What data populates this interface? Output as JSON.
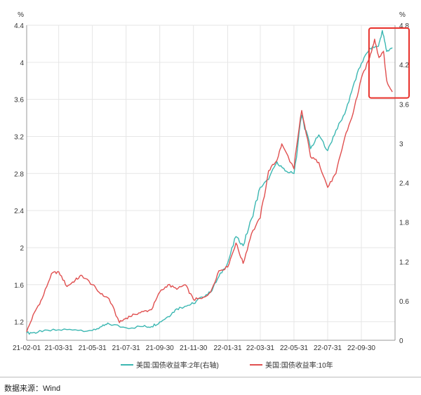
{
  "chart_data": {
    "type": "line",
    "title": "",
    "left_axis": {
      "unit": "%",
      "ylim": [
        1.0,
        4.4
      ],
      "ticks": [
        "1.2",
        "1.6",
        "2",
        "2.4",
        "2.8",
        "3.2",
        "3.6",
        "4",
        "4.4"
      ]
    },
    "right_axis": {
      "unit": "%",
      "ylim": [
        0,
        4.8
      ],
      "ticks": [
        "0",
        "0.6",
        "1.2",
        "1.8",
        "2.4",
        "3",
        "3.6",
        "4.2",
        "4.8"
      ]
    },
    "x_ticks": [
      "21-02-01",
      "21-03-31",
      "21-05-31",
      "21-07-31",
      "21-09-30",
      "21-11-30",
      "22-01-31",
      "22-03-31",
      "22-05-31",
      "22-07-31",
      "22-09-30"
    ],
    "grid": true,
    "legend_position": "bottom",
    "series": [
      {
        "name": "美国:国债收益率:2年(右轴)",
        "axis": "right",
        "color": "#3bb7b2",
        "points": [
          [
            "2021-02-01",
            0.11
          ],
          [
            "2021-02-15",
            0.12
          ],
          [
            "2021-03-01",
            0.13
          ],
          [
            "2021-03-31",
            0.16
          ],
          [
            "2021-04-30",
            0.16
          ],
          [
            "2021-05-31",
            0.15
          ],
          [
            "2021-06-17",
            0.21
          ],
          [
            "2021-06-30",
            0.25
          ],
          [
            "2021-07-31",
            0.19
          ],
          [
            "2021-08-31",
            0.21
          ],
          [
            "2021-09-15",
            0.21
          ],
          [
            "2021-09-30",
            0.28
          ],
          [
            "2021-10-15",
            0.36
          ],
          [
            "2021-10-31",
            0.48
          ],
          [
            "2021-11-15",
            0.52
          ],
          [
            "2021-11-30",
            0.56
          ],
          [
            "2021-12-15",
            0.66
          ],
          [
            "2021-12-31",
            0.73
          ],
          [
            "2022-01-15",
            0.97
          ],
          [
            "2022-01-31",
            1.18
          ],
          [
            "2022-02-15",
            1.58
          ],
          [
            "2022-02-28",
            1.44
          ],
          [
            "2022-03-15",
            1.85
          ],
          [
            "2022-03-31",
            2.33
          ],
          [
            "2022-04-15",
            2.45
          ],
          [
            "2022-04-30",
            2.72
          ],
          [
            "2022-05-15",
            2.58
          ],
          [
            "2022-05-31",
            2.54
          ],
          [
            "2022-06-14",
            3.43
          ],
          [
            "2022-06-30",
            2.92
          ],
          [
            "2022-07-15",
            3.13
          ],
          [
            "2022-07-31",
            2.89
          ],
          [
            "2022-08-15",
            3.2
          ],
          [
            "2022-08-31",
            3.45
          ],
          [
            "2022-09-15",
            3.87
          ],
          [
            "2022-09-30",
            4.22
          ],
          [
            "2022-10-15",
            4.45
          ],
          [
            "2022-10-31",
            4.48
          ],
          [
            "2022-11-07",
            4.72
          ],
          [
            "2022-11-15",
            4.4
          ],
          [
            "2022-11-25",
            4.46
          ]
        ]
      },
      {
        "name": "美国:国债收益率:10年",
        "axis": "left",
        "color": "#e04f4f",
        "points": [
          [
            "2021-02-01",
            1.09
          ],
          [
            "2021-02-15",
            1.3
          ],
          [
            "2021-03-01",
            1.45
          ],
          [
            "2021-03-18",
            1.72
          ],
          [
            "2021-03-31",
            1.74
          ],
          [
            "2021-04-15",
            1.58
          ],
          [
            "2021-04-30",
            1.65
          ],
          [
            "2021-05-12",
            1.7
          ],
          [
            "2021-05-31",
            1.6
          ],
          [
            "2021-06-15",
            1.5
          ],
          [
            "2021-06-30",
            1.45
          ],
          [
            "2021-07-19",
            1.19
          ],
          [
            "2021-07-31",
            1.24
          ],
          [
            "2021-08-15",
            1.28
          ],
          [
            "2021-08-31",
            1.31
          ],
          [
            "2021-09-15",
            1.33
          ],
          [
            "2021-09-30",
            1.52
          ],
          [
            "2021-10-15",
            1.6
          ],
          [
            "2021-10-31",
            1.55
          ],
          [
            "2021-11-15",
            1.6
          ],
          [
            "2021-11-30",
            1.44
          ],
          [
            "2021-12-15",
            1.45
          ],
          [
            "2021-12-31",
            1.52
          ],
          [
            "2022-01-15",
            1.75
          ],
          [
            "2022-01-31",
            1.79
          ],
          [
            "2022-02-15",
            2.05
          ],
          [
            "2022-02-28",
            1.83
          ],
          [
            "2022-03-15",
            2.15
          ],
          [
            "2022-03-31",
            2.32
          ],
          [
            "2022-04-15",
            2.83
          ],
          [
            "2022-04-30",
            2.94
          ],
          [
            "2022-05-09",
            3.12
          ],
          [
            "2022-05-31",
            2.85
          ],
          [
            "2022-06-14",
            3.48
          ],
          [
            "2022-06-30",
            2.98
          ],
          [
            "2022-07-15",
            2.92
          ],
          [
            "2022-07-31",
            2.65
          ],
          [
            "2022-08-15",
            2.8
          ],
          [
            "2022-08-31",
            3.19
          ],
          [
            "2022-09-15",
            3.45
          ],
          [
            "2022-09-30",
            3.83
          ],
          [
            "2022-10-15",
            4.05
          ],
          [
            "2022-10-24",
            4.25
          ],
          [
            "2022-11-01",
            4.05
          ],
          [
            "2022-11-09",
            4.12
          ],
          [
            "2022-11-15",
            3.8
          ],
          [
            "2022-11-25",
            3.68
          ]
        ]
      }
    ],
    "annotation": {
      "type": "highlight-box",
      "color": "#e8302a",
      "x_range": [
        "2022-10-24",
        "2022-11-30"
      ],
      "right_axis_range": [
        3.65,
        4.8
      ]
    }
  },
  "source": {
    "text": "数据来源：Wind"
  }
}
